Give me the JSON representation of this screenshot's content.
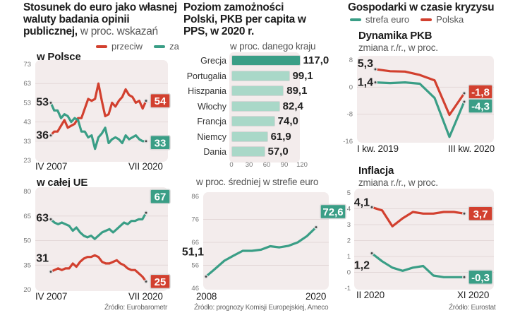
{
  "colors": {
    "red": "#d2402f",
    "green": "#3a9e86",
    "light_green": "#a9d8c8",
    "plot_bg": "#f3ecec"
  },
  "panel1": {
    "title_bold": "Stosunek do euro jako własnej waluty badania opinii publicznej,",
    "title_light": "w proc. wskazań",
    "legend": [
      {
        "label": "przeciw",
        "color": "#d2402f"
      },
      {
        "label": "za",
        "color": "#3a9e86"
      }
    ],
    "source": "Źródło: Eurobarometr"
  },
  "panel2": {
    "title": "Poziom zamożności Polski, PKB per capita w PPS, w 2020 r.",
    "source": "Źródło: prognozy Komisji Europejskiej, Ameco"
  },
  "panel3": {
    "title": "Gospodarki w czasie kryzysu",
    "legend": [
      {
        "label": "strefa euro",
        "color": "#3a9e86"
      },
      {
        "label": "Polska",
        "color": "#d2402f"
      }
    ],
    "source": "Źródło: Eurostat"
  },
  "chart_data": [
    {
      "id": "poland",
      "type": "line",
      "title": "w Polsce",
      "x_start_label": "IV 2007",
      "x_end_label": "VII 2020",
      "ylim": [
        23,
        73
      ],
      "yticks": [
        23,
        33,
        43,
        53,
        63,
        73
      ],
      "grid": true,
      "series": [
        {
          "name": "przeciw",
          "color": "#d2402f",
          "values": [
            36,
            38,
            38,
            41,
            44,
            40,
            41,
            42,
            45,
            45,
            50,
            55,
            54,
            55,
            63,
            54,
            46,
            47,
            53,
            51,
            54,
            56,
            60,
            57,
            56,
            53,
            54,
            50,
            54
          ],
          "start_label": "36",
          "end_label": "54"
        },
        {
          "name": "za",
          "color": "#3a9e86",
          "values": [
            53,
            49,
            49,
            45,
            47,
            46,
            43,
            45,
            44,
            38,
            38,
            35,
            36,
            29,
            35,
            37,
            40,
            32,
            34,
            35,
            34,
            32,
            36,
            34,
            35,
            36,
            34,
            33,
            33
          ],
          "start_label": "53",
          "end_label": "33"
        }
      ]
    },
    {
      "id": "eu",
      "type": "line",
      "title": "w całej UE",
      "x_start_label": "IV 2007",
      "x_end_label": "VII 2020",
      "ylim": [
        20,
        80
      ],
      "yticks": [
        20,
        35,
        50,
        65,
        80
      ],
      "grid": true,
      "series": [
        {
          "name": "za",
          "color": "#3a9e86",
          "values": [
            63,
            61,
            60,
            61,
            60,
            59,
            56,
            58,
            55,
            53,
            52,
            53,
            51,
            53,
            55,
            56,
            57,
            55,
            57,
            59,
            61,
            60,
            62,
            62,
            63,
            63,
            67
          ],
          "start_label": "63",
          "end_label": "67"
        },
        {
          "name": "przeciw",
          "color": "#d2402f",
          "values": [
            31,
            32,
            33,
            32,
            33,
            33,
            36,
            34,
            37,
            39,
            40,
            40,
            41,
            40,
            37,
            36,
            36,
            37,
            38,
            36,
            35,
            33,
            32,
            32,
            30,
            28,
            25
          ],
          "start_label": "31",
          "end_label": "25"
        }
      ]
    },
    {
      "id": "gdp_ppp",
      "type": "bar",
      "orientation": "horizontal",
      "unit_label": "w proc. danego kraju",
      "categories": [
        "Grecja",
        "Portugalia",
        "Hiszpania",
        "Włochy",
        "Francja",
        "Niemcy",
        "Dania"
      ],
      "values": [
        117.0,
        99.1,
        89.1,
        82.4,
        74.0,
        61.9,
        57.0
      ],
      "value_labels": [
        "117,0",
        "99,1",
        "89,1",
        "82,4",
        "74,0",
        "61,9",
        "57,0"
      ],
      "highlight_index": 0,
      "xlim": [
        0,
        120
      ],
      "xticks": [
        0,
        30,
        60,
        90,
        120
      ]
    },
    {
      "id": "vs_eurozone",
      "type": "line",
      "unit_label": "w proc. średniej w strefie euro",
      "x": [
        2008,
        2009,
        2010,
        2011,
        2012,
        2013,
        2014,
        2015,
        2016,
        2017,
        2018,
        2019,
        2020
      ],
      "x_start_label": "2008",
      "x_end_label": "2020",
      "ylim": [
        46,
        86
      ],
      "yticks": [
        46,
        56,
        66,
        76,
        86
      ],
      "grid": true,
      "series": [
        {
          "name": "Polska",
          "color": "#3a9e86",
          "values": [
            51.1,
            54.5,
            58.0,
            60.2,
            62.3,
            62.3,
            62.8,
            64.3,
            63.8,
            64.5,
            66.0,
            68.7,
            72.6
          ],
          "start_label": "51,1",
          "end_label": "72,6"
        }
      ]
    },
    {
      "id": "gdp_dynamics",
      "type": "line",
      "title": "Dynamika PKB",
      "unit_label": "zmiana r./r., w proc.",
      "x_start_label": "I kw. 2019",
      "x_end_label": "III kw. 2020",
      "ylim": [
        -16,
        8
      ],
      "yticks": [
        -16,
        -8,
        0,
        8
      ],
      "grid": true,
      "series": [
        {
          "name": "Polska",
          "color": "#d2402f",
          "values": [
            5.3,
            4.7,
            4.6,
            3.6,
            2.0,
            -8.2,
            -1.8
          ],
          "start_label": "5,3",
          "end_label": "-1,8"
        },
        {
          "name": "strefa euro",
          "color": "#3a9e86",
          "values": [
            1.4,
            1.2,
            1.4,
            1.0,
            -3.2,
            -14.7,
            -4.3
          ],
          "start_label": "1,4",
          "end_label": "-4,3"
        }
      ]
    },
    {
      "id": "inflation",
      "type": "line",
      "title": "Inflacja",
      "unit_label": "zmiana r./r., w proc.",
      "x_start_label": "II 2020",
      "x_end_label": "XI 2020",
      "ylim": [
        -1,
        5
      ],
      "yticks": [
        -1,
        0,
        1,
        2,
        3,
        4,
        5
      ],
      "grid": true,
      "series": [
        {
          "name": "Polska",
          "color": "#d2402f",
          "values": [
            4.1,
            3.9,
            2.9,
            3.4,
            3.8,
            3.7,
            3.7,
            3.8,
            3.8,
            3.7
          ],
          "start_label": "4,1",
          "end_label": "3,7"
        },
        {
          "name": "strefa euro",
          "color": "#3a9e86",
          "values": [
            1.2,
            0.7,
            0.3,
            0.1,
            0.3,
            0.4,
            -0.2,
            -0.3,
            -0.3,
            -0.3
          ],
          "start_label": "1,2",
          "end_label": "-0,3"
        }
      ]
    }
  ]
}
